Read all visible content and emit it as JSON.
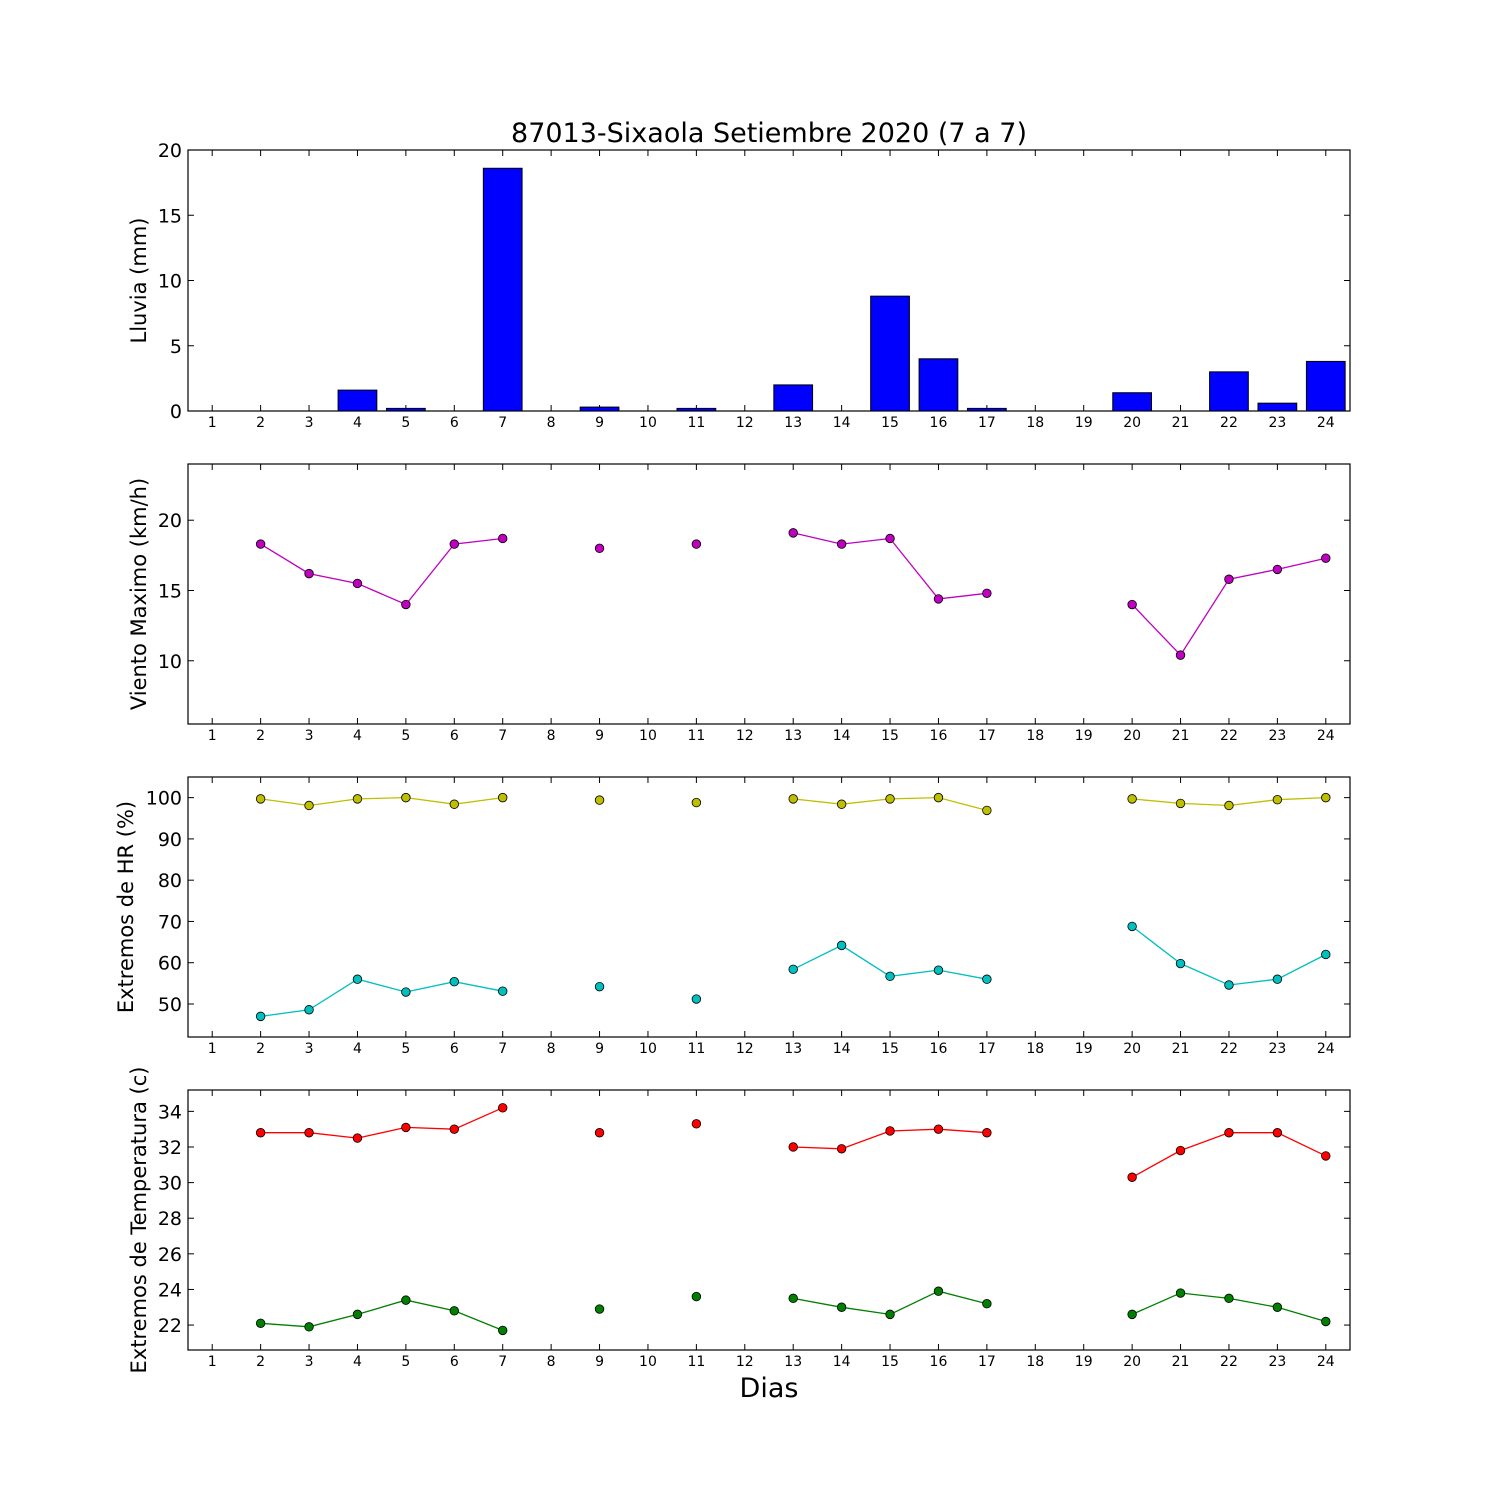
{
  "chart_data": {
    "title": "87013-Sixaola Setiembre 2020  (7 a 7)",
    "xlabel": "Dias",
    "x_ticks": [
      1,
      2,
      3,
      4,
      5,
      6,
      7,
      8,
      9,
      10,
      11,
      12,
      13,
      14,
      15,
      16,
      17,
      18,
      19,
      20,
      21,
      22,
      23,
      24
    ],
    "xlim": [
      0.5,
      24.5
    ],
    "panels": [
      {
        "id": "lluvia",
        "type": "bar",
        "ylabel": "Lluvia (mm)",
        "ylim": [
          0,
          20
        ],
        "yticks": [
          0,
          5,
          10,
          15,
          20
        ],
        "series": [
          {
            "color": "#0000ff",
            "x": [
              2,
              3,
              4,
              5,
              6,
              7,
              9,
              11,
              13,
              15,
              16,
              17,
              20,
              22,
              23,
              24
            ],
            "values": [
              0.0,
              0.0,
              1.6,
              0.2,
              0.0,
              18.6,
              0.3,
              0.2,
              2.0,
              8.8,
              4.0,
              0.2,
              1.4,
              3.0,
              0.6,
              3.8
            ]
          }
        ]
      },
      {
        "id": "viento",
        "type": "line",
        "ylabel": "Viento Maximo (km/h)",
        "ylim": [
          5.5,
          24
        ],
        "yticks": [
          10,
          15,
          20
        ],
        "series": [
          {
            "color": "#bf00bf",
            "x": [
              2,
              3,
              4,
              5,
              6,
              7,
              9,
              11,
              13,
              14,
              15,
              16,
              17,
              20,
              21,
              22,
              23,
              24
            ],
            "values": [
              18.3,
              16.2,
              15.5,
              14.0,
              18.3,
              18.7,
              18.0,
              18.3,
              19.1,
              18.3,
              18.7,
              14.4,
              14.8,
              14.0,
              10.4,
              15.8,
              16.5,
              17.3
            ]
          }
        ]
      },
      {
        "id": "hr",
        "type": "line",
        "ylabel": "Extremos de HR (%)",
        "ylim": [
          42,
          105
        ],
        "yticks": [
          50,
          60,
          70,
          80,
          90,
          100
        ],
        "series": [
          {
            "color": "#bfbf00",
            "x": [
              2,
              3,
              4,
              5,
              6,
              7,
              9,
              11,
              13,
              14,
              15,
              16,
              17,
              20,
              21,
              22,
              23,
              24
            ],
            "values": [
              99.7,
              98.1,
              99.7,
              100.0,
              98.4,
              100.0,
              99.4,
              98.8,
              99.7,
              98.4,
              99.7,
              100.0,
              96.9,
              99.7,
              98.6,
              98.1,
              99.5,
              100.0
            ]
          },
          {
            "color": "#00bfbf",
            "x": [
              2,
              3,
              4,
              5,
              6,
              7,
              9,
              11,
              13,
              14,
              15,
              16,
              17,
              20,
              21,
              22,
              23,
              24
            ],
            "values": [
              47.0,
              48.6,
              56.0,
              52.9,
              55.4,
              53.1,
              54.2,
              51.2,
              58.4,
              64.2,
              56.7,
              58.2,
              56.0,
              68.8,
              59.8,
              54.6,
              56.0,
              62.0
            ]
          }
        ]
      },
      {
        "id": "temperatura",
        "type": "line",
        "ylabel": "Extremos de Temperatura (c)",
        "ylim": [
          20.6,
          35.2
        ],
        "yticks": [
          22,
          24,
          26,
          28,
          30,
          32,
          34
        ],
        "series": [
          {
            "color": "#ff0000",
            "x": [
              2,
              3,
              4,
              5,
              6,
              7,
              9,
              11,
              13,
              14,
              15,
              16,
              17,
              20,
              21,
              22,
              23,
              24
            ],
            "values": [
              32.8,
              32.8,
              32.5,
              33.1,
              33.0,
              34.2,
              32.8,
              33.3,
              32.0,
              31.9,
              32.9,
              33.0,
              32.8,
              30.3,
              31.8,
              32.8,
              32.8,
              31.5
            ]
          },
          {
            "color": "#007f00",
            "x": [
              2,
              3,
              4,
              5,
              6,
              7,
              9,
              11,
              13,
              14,
              15,
              16,
              17,
              20,
              21,
              22,
              23,
              24
            ],
            "values": [
              22.1,
              21.9,
              22.6,
              23.4,
              22.8,
              21.7,
              22.9,
              23.6,
              23.5,
              23.0,
              22.6,
              23.9,
              23.2,
              22.6,
              23.8,
              23.5,
              23.0,
              22.2
            ]
          }
        ]
      }
    ]
  }
}
